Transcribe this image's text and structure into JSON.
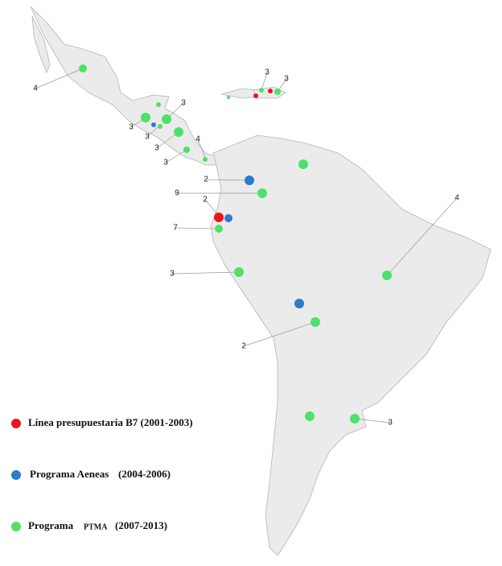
{
  "legend": [
    {
      "name": "Línea presupuestaria B7",
      "period": "(2001-2003)",
      "color": "#e8171a"
    },
    {
      "name": "Programa Aeneas",
      "period": "(2004-2006)",
      "color": "#2a7ccc"
    },
    {
      "name": "Programa",
      "acronym": "PTMA",
      "period": "(2007-2013)",
      "color": "#4ee06a"
    }
  ],
  "labels": [
    4,
    3,
    3,
    3,
    3,
    3,
    3,
    4,
    3,
    2,
    9,
    2,
    7,
    3,
    4,
    2,
    3
  ]
}
